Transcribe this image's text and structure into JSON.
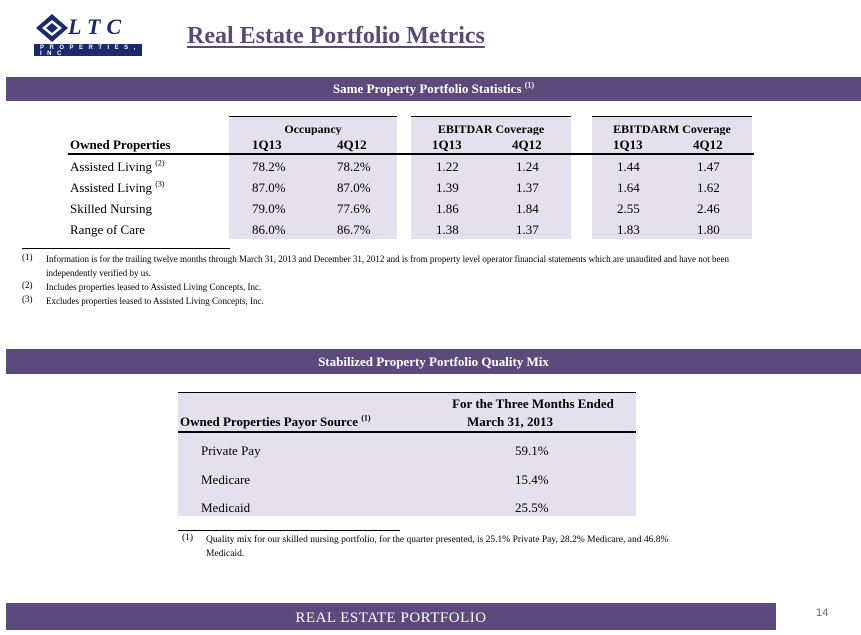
{
  "logo": {
    "word": "LTC",
    "sub": "PROPERTIES, INC"
  },
  "title": "Real Estate Portfolio Metrics",
  "section1": {
    "band": "Same Property Portfolio Statistics",
    "band_sup": "(1)",
    "groups": [
      "Occupancy",
      "EBITDAR Coverage",
      "EBITDARM Coverage"
    ],
    "row_header": "Owned Properties",
    "periods": [
      "1Q13",
      "4Q12",
      "1Q13",
      "4Q12",
      "1Q13",
      "4Q12"
    ],
    "rows": [
      {
        "label": "Assisted Living",
        "sup": "(2)",
        "values": [
          "78.2%",
          "78.2%",
          "1.22",
          "1.24",
          "1.44",
          "1.47"
        ]
      },
      {
        "label": "Assisted Living",
        "sup": "(3)",
        "values": [
          "87.0%",
          "87.0%",
          "1.39",
          "1.37",
          "1.64",
          "1.62"
        ]
      },
      {
        "label": "Skilled Nursing",
        "sup": "",
        "values": [
          "79.0%",
          "77.6%",
          "1.86",
          "1.84",
          "2.55",
          "2.46"
        ]
      },
      {
        "label": "Range of Care",
        "sup": "",
        "values": [
          "86.0%",
          "86.7%",
          "1.38",
          "1.37",
          "1.83",
          "1.80"
        ]
      }
    ],
    "footnotes": [
      {
        "num": "(1)",
        "text": "Information is for the trailing twelve months through March 31, 2013 and December 31, 2012 and is from property level operator financial statements which are unaudited and have not been independently verified by us."
      },
      {
        "num": "(2)",
        "text": "Includes properties leased to Assisted Living Concepts, Inc."
      },
      {
        "num": "(3)",
        "text": "Excludes properties leased to Assisted Living Concepts, Inc."
      }
    ]
  },
  "section2": {
    "band": "Stabilized Property Portfolio Quality Mix",
    "row_header": "Owned Properties Payor Source",
    "row_header_sup": "(1)",
    "col_header_line1": "For the Three Months Ended",
    "col_header_line2": "March 31, 2013",
    "rows": [
      {
        "label": "Private Pay",
        "value": "59.1%"
      },
      {
        "label": "Medicare",
        "value": "15.4%"
      },
      {
        "label": "Medicaid",
        "value": "25.5%"
      }
    ],
    "footnote": {
      "num": "(1)",
      "text": "Quality mix for our skilled nursing portfolio, for the quarter presented, is 25.1% Private Pay, 28.2% Medicare, and 46.8% Medicaid."
    }
  },
  "footer": {
    "band": "REAL ESTATE PORTFOLIO",
    "page_number": "14"
  }
}
